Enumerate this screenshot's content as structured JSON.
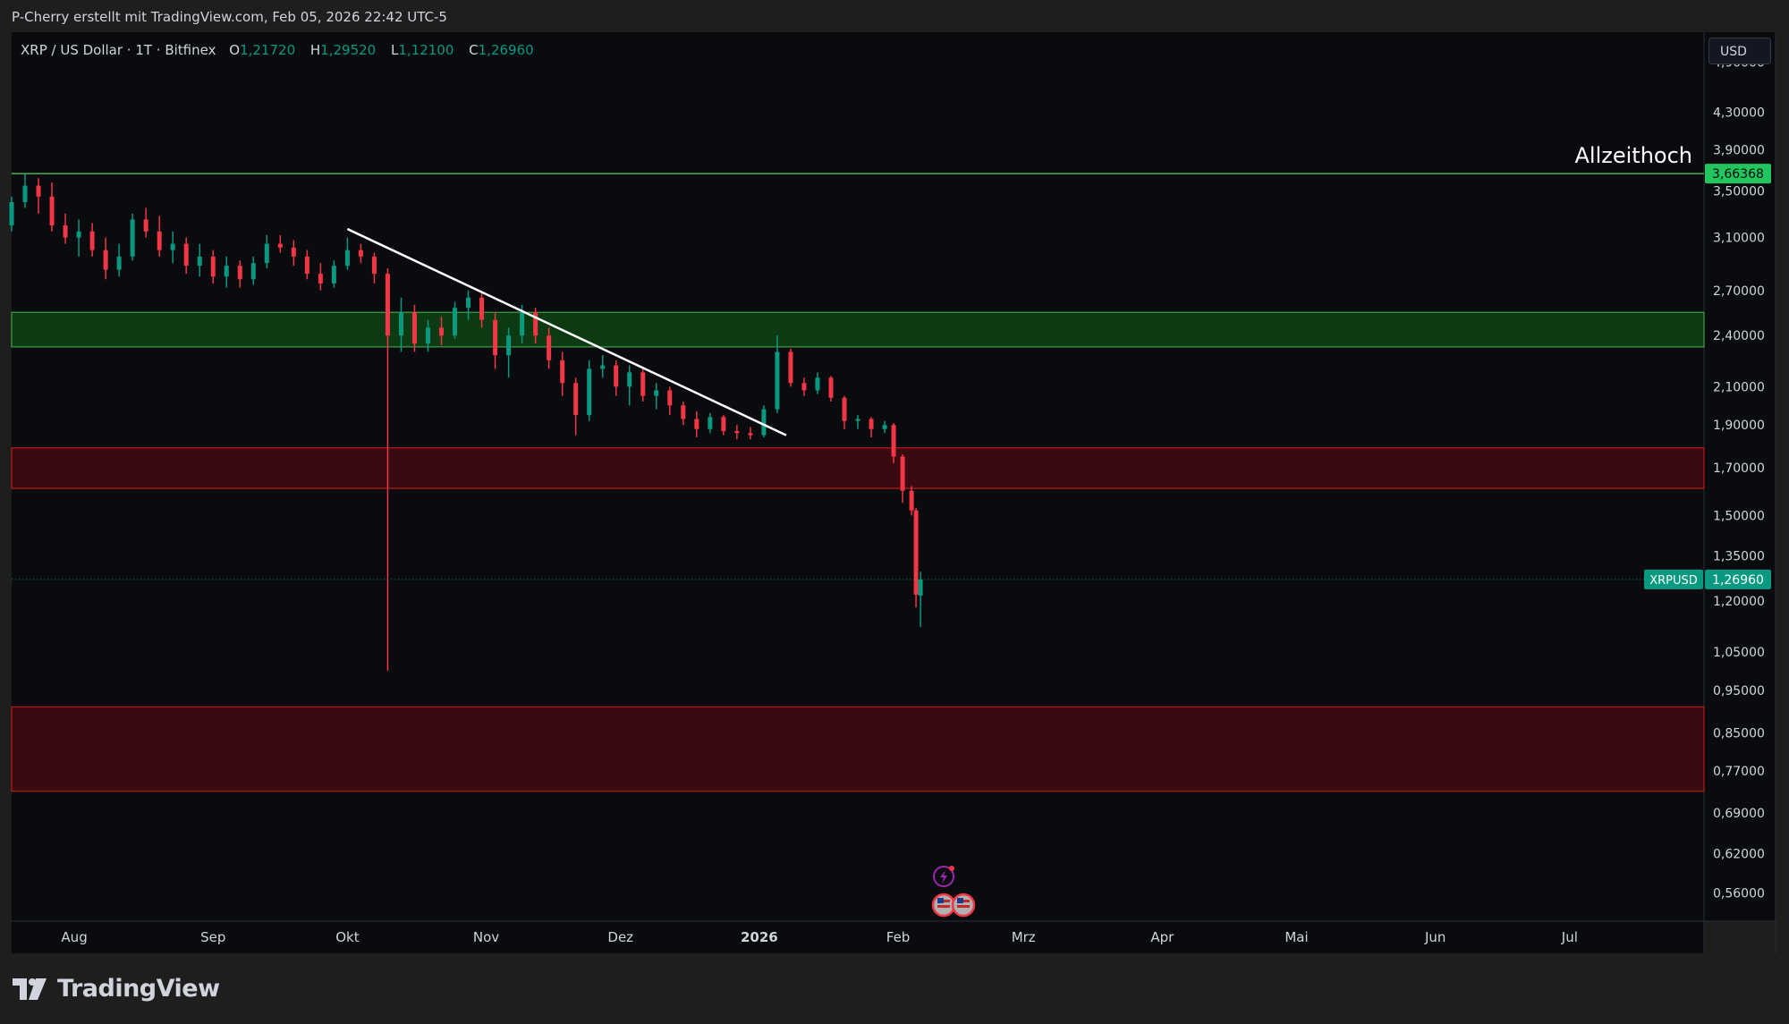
{
  "topbar": {
    "attribution": "P-Cherry erstellt mit TradingView.com, Feb 05, 2026 22:42 UTC-5"
  },
  "legend": {
    "symbol": "XRP / US Dollar · 1T · Bitfinex",
    "o_label": "O",
    "o_value": "1,21720",
    "h_label": "H",
    "h_value": "1,29520",
    "l_label": "L",
    "l_value": "1,12100",
    "c_label": "C",
    "c_value": "1,26960"
  },
  "currency": "USD",
  "brand": {
    "name": "TradingView"
  },
  "colors": {
    "up": "#089981",
    "down": "#f23645",
    "bg": "#0a0b0f",
    "zone_green": "#0c3a12",
    "zone_red": "#3a0a10",
    "ath_line": "#4caf50",
    "trendline": "#ffffff"
  },
  "chart_data": {
    "type": "candlestick",
    "scale": "log",
    "ylim": [
      0.52,
      5.3
    ],
    "xlim": [
      "2025-07-18",
      "2026-07-31"
    ],
    "y_ticks": [
      "4,90000",
      "4,30000",
      "3,90000",
      "3,50000",
      "3,10000",
      "2,70000",
      "2,40000",
      "2,10000",
      "1,90000",
      "1,70000",
      "1,50000",
      "1,35000",
      "1,20000",
      "1,05000",
      "0,95000",
      "0,85000",
      "0,77000",
      "0,69000",
      "0,62000",
      "0,56000"
    ],
    "y_tick_values": [
      4.9,
      4.3,
      3.9,
      3.5,
      3.1,
      2.7,
      2.4,
      2.1,
      1.9,
      1.7,
      1.5,
      1.35,
      1.2,
      1.05,
      0.95,
      0.85,
      0.77,
      0.69,
      0.62,
      0.56
    ],
    "x_ticks": [
      "Aug",
      "Sep",
      "Okt",
      "Nov",
      "Dez",
      "2026",
      "Feb",
      "Mrz",
      "Apr",
      "Mai",
      "Jun",
      "Jul"
    ],
    "x_tick_dates": [
      "2025-08-01",
      "2025-09-01",
      "2025-10-01",
      "2025-11-01",
      "2025-12-01",
      "2026-01-01",
      "2026-02-01",
      "2026-03-01",
      "2026-04-01",
      "2026-05-01",
      "2026-06-01",
      "2026-07-01"
    ],
    "ath": {
      "label": "Allzeithoch",
      "value": 3.66368,
      "value_label": "3,66368"
    },
    "last_price": {
      "symbol": "XRPUSD",
      "value": 1.2696,
      "value_label": "1,26960"
    },
    "zones": [
      {
        "type": "resistance",
        "color": "green",
        "from": 2.33,
        "to": 2.55
      },
      {
        "type": "support",
        "color": "red",
        "from": 1.61,
        "to": 1.79
      },
      {
        "type": "support",
        "color": "red",
        "from": 0.73,
        "to": 0.91
      }
    ],
    "trendline": {
      "from_date": "2025-10-01",
      "from_value": 3.17,
      "to_date": "2026-01-07",
      "to_value": 1.85
    },
    "events": [
      "lightning-icon",
      "us-flag-icon",
      "us-flag-icon"
    ],
    "candles": [
      {
        "date": "2025-07-18",
        "o": 3.2,
        "h": 3.45,
        "l": 3.15,
        "c": 3.4
      },
      {
        "date": "2025-07-21",
        "o": 3.4,
        "h": 3.66,
        "l": 3.35,
        "c": 3.55
      },
      {
        "date": "2025-07-24",
        "o": 3.55,
        "h": 3.62,
        "l": 3.3,
        "c": 3.45
      },
      {
        "date": "2025-07-27",
        "o": 3.45,
        "h": 3.58,
        "l": 3.15,
        "c": 3.2
      },
      {
        "date": "2025-07-30",
        "o": 3.2,
        "h": 3.3,
        "l": 3.05,
        "c": 3.1
      },
      {
        "date": "2025-08-02",
        "o": 3.1,
        "h": 3.25,
        "l": 2.95,
        "c": 3.15
      },
      {
        "date": "2025-08-05",
        "o": 3.15,
        "h": 3.22,
        "l": 2.95,
        "c": 3.0
      },
      {
        "date": "2025-08-08",
        "o": 3.0,
        "h": 3.1,
        "l": 2.78,
        "c": 2.85
      },
      {
        "date": "2025-08-11",
        "o": 2.85,
        "h": 3.05,
        "l": 2.8,
        "c": 2.95
      },
      {
        "date": "2025-08-14",
        "o": 2.95,
        "h": 3.3,
        "l": 2.92,
        "c": 3.25
      },
      {
        "date": "2025-08-17",
        "o": 3.25,
        "h": 3.35,
        "l": 3.1,
        "c": 3.15
      },
      {
        "date": "2025-08-20",
        "o": 3.15,
        "h": 3.28,
        "l": 2.95,
        "c": 3.0
      },
      {
        "date": "2025-08-23",
        "o": 3.0,
        "h": 3.15,
        "l": 2.9,
        "c": 3.05
      },
      {
        "date": "2025-08-26",
        "o": 3.05,
        "h": 3.1,
        "l": 2.82,
        "c": 2.88
      },
      {
        "date": "2025-08-29",
        "o": 2.88,
        "h": 3.05,
        "l": 2.8,
        "c": 2.95
      },
      {
        "date": "2025-09-01",
        "o": 2.95,
        "h": 3.0,
        "l": 2.75,
        "c": 2.8
      },
      {
        "date": "2025-09-04",
        "o": 2.8,
        "h": 2.95,
        "l": 2.72,
        "c": 2.88
      },
      {
        "date": "2025-09-07",
        "o": 2.88,
        "h": 2.92,
        "l": 2.72,
        "c": 2.78
      },
      {
        "date": "2025-09-10",
        "o": 2.78,
        "h": 2.95,
        "l": 2.74,
        "c": 2.9
      },
      {
        "date": "2025-09-13",
        "o": 2.9,
        "h": 3.12,
        "l": 2.86,
        "c": 3.05
      },
      {
        "date": "2025-09-16",
        "o": 3.05,
        "h": 3.12,
        "l": 2.98,
        "c": 3.02
      },
      {
        "date": "2025-09-19",
        "o": 3.02,
        "h": 3.08,
        "l": 2.88,
        "c": 2.95
      },
      {
        "date": "2025-09-22",
        "o": 2.95,
        "h": 3.0,
        "l": 2.78,
        "c": 2.82
      },
      {
        "date": "2025-09-25",
        "o": 2.82,
        "h": 2.9,
        "l": 2.7,
        "c": 2.75
      },
      {
        "date": "2025-09-28",
        "o": 2.75,
        "h": 2.92,
        "l": 2.72,
        "c": 2.88
      },
      {
        "date": "2025-10-01",
        "o": 2.88,
        "h": 3.1,
        "l": 2.85,
        "c": 3.0
      },
      {
        "date": "2025-10-04",
        "o": 3.0,
        "h": 3.05,
        "l": 2.9,
        "c": 2.95
      },
      {
        "date": "2025-10-07",
        "o": 2.95,
        "h": 2.98,
        "l": 2.75,
        "c": 2.82
      },
      {
        "date": "2025-10-10",
        "o": 2.82,
        "h": 2.86,
        "l": 1.0,
        "c": 2.4
      },
      {
        "date": "2025-10-13",
        "o": 2.4,
        "h": 2.65,
        "l": 2.3,
        "c": 2.55
      },
      {
        "date": "2025-10-16",
        "o": 2.55,
        "h": 2.6,
        "l": 2.3,
        "c": 2.35
      },
      {
        "date": "2025-10-19",
        "o": 2.35,
        "h": 2.5,
        "l": 2.3,
        "c": 2.45
      },
      {
        "date": "2025-10-22",
        "o": 2.45,
        "h": 2.52,
        "l": 2.34,
        "c": 2.4
      },
      {
        "date": "2025-10-25",
        "o": 2.4,
        "h": 2.62,
        "l": 2.38,
        "c": 2.58
      },
      {
        "date": "2025-10-28",
        "o": 2.58,
        "h": 2.7,
        "l": 2.5,
        "c": 2.65
      },
      {
        "date": "2025-10-31",
        "o": 2.65,
        "h": 2.68,
        "l": 2.45,
        "c": 2.5
      },
      {
        "date": "2025-11-03",
        "o": 2.5,
        "h": 2.55,
        "l": 2.2,
        "c": 2.28
      },
      {
        "date": "2025-11-06",
        "o": 2.28,
        "h": 2.45,
        "l": 2.15,
        "c": 2.4
      },
      {
        "date": "2025-11-09",
        "o": 2.4,
        "h": 2.6,
        "l": 2.35,
        "c": 2.55
      },
      {
        "date": "2025-11-12",
        "o": 2.55,
        "h": 2.58,
        "l": 2.35,
        "c": 2.4
      },
      {
        "date": "2025-11-15",
        "o": 2.4,
        "h": 2.45,
        "l": 2.2,
        "c": 2.25
      },
      {
        "date": "2025-11-18",
        "o": 2.25,
        "h": 2.3,
        "l": 2.05,
        "c": 2.12
      },
      {
        "date": "2025-11-21",
        "o": 2.12,
        "h": 2.15,
        "l": 1.85,
        "c": 1.95
      },
      {
        "date": "2025-11-24",
        "o": 1.95,
        "h": 2.25,
        "l": 1.92,
        "c": 2.2
      },
      {
        "date": "2025-11-27",
        "o": 2.2,
        "h": 2.28,
        "l": 2.15,
        "c": 2.22
      },
      {
        "date": "2025-11-30",
        "o": 2.22,
        "h": 2.25,
        "l": 2.05,
        "c": 2.1
      },
      {
        "date": "2025-12-03",
        "o": 2.1,
        "h": 2.22,
        "l": 2.0,
        "c": 2.18
      },
      {
        "date": "2025-12-06",
        "o": 2.18,
        "h": 2.2,
        "l": 2.02,
        "c": 2.05
      },
      {
        "date": "2025-12-09",
        "o": 2.05,
        "h": 2.12,
        "l": 1.98,
        "c": 2.08
      },
      {
        "date": "2025-12-12",
        "o": 2.08,
        "h": 2.1,
        "l": 1.95,
        "c": 2.0
      },
      {
        "date": "2025-12-15",
        "o": 2.0,
        "h": 2.02,
        "l": 1.9,
        "c": 1.93
      },
      {
        "date": "2025-12-18",
        "o": 1.93,
        "h": 1.97,
        "l": 1.84,
        "c": 1.88
      },
      {
        "date": "2025-12-21",
        "o": 1.88,
        "h": 1.96,
        "l": 1.86,
        "c": 1.94
      },
      {
        "date": "2025-12-24",
        "o": 1.94,
        "h": 1.95,
        "l": 1.85,
        "c": 1.87
      },
      {
        "date": "2025-12-27",
        "o": 1.87,
        "h": 1.9,
        "l": 1.83,
        "c": 1.86
      },
      {
        "date": "2025-12-30",
        "o": 1.86,
        "h": 1.89,
        "l": 1.83,
        "c": 1.85
      },
      {
        "date": "2026-01-02",
        "o": 1.85,
        "h": 2.0,
        "l": 1.84,
        "c": 1.98
      },
      {
        "date": "2026-01-05",
        "o": 1.98,
        "h": 2.4,
        "l": 1.96,
        "c": 2.3
      },
      {
        "date": "2026-01-08",
        "o": 2.3,
        "h": 2.32,
        "l": 2.1,
        "c": 2.12
      },
      {
        "date": "2026-01-11",
        "o": 2.12,
        "h": 2.15,
        "l": 2.05,
        "c": 2.08
      },
      {
        "date": "2026-01-14",
        "o": 2.08,
        "h": 2.18,
        "l": 2.06,
        "c": 2.15
      },
      {
        "date": "2026-01-17",
        "o": 2.15,
        "h": 2.16,
        "l": 2.02,
        "c": 2.04
      },
      {
        "date": "2026-01-20",
        "o": 2.04,
        "h": 2.05,
        "l": 1.88,
        "c": 1.92
      },
      {
        "date": "2026-01-23",
        "o": 1.92,
        "h": 1.95,
        "l": 1.88,
        "c": 1.93
      },
      {
        "date": "2026-01-26",
        "o": 1.93,
        "h": 1.94,
        "l": 1.84,
        "c": 1.88
      },
      {
        "date": "2026-01-29",
        "o": 1.88,
        "h": 1.92,
        "l": 1.86,
        "c": 1.9
      },
      {
        "date": "2026-01-31",
        "o": 1.9,
        "h": 1.91,
        "l": 1.72,
        "c": 1.75
      },
      {
        "date": "2026-02-02",
        "o": 1.75,
        "h": 1.76,
        "l": 1.55,
        "c": 1.6
      },
      {
        "date": "2026-02-04",
        "o": 1.6,
        "h": 1.62,
        "l": 1.5,
        "c": 1.52
      },
      {
        "date": "2026-02-05",
        "o": 1.52,
        "h": 1.53,
        "l": 1.18,
        "c": 1.22
      },
      {
        "date": "2026-02-06",
        "o": 1.2172,
        "h": 1.2952,
        "l": 1.121,
        "c": 1.2696
      }
    ]
  }
}
